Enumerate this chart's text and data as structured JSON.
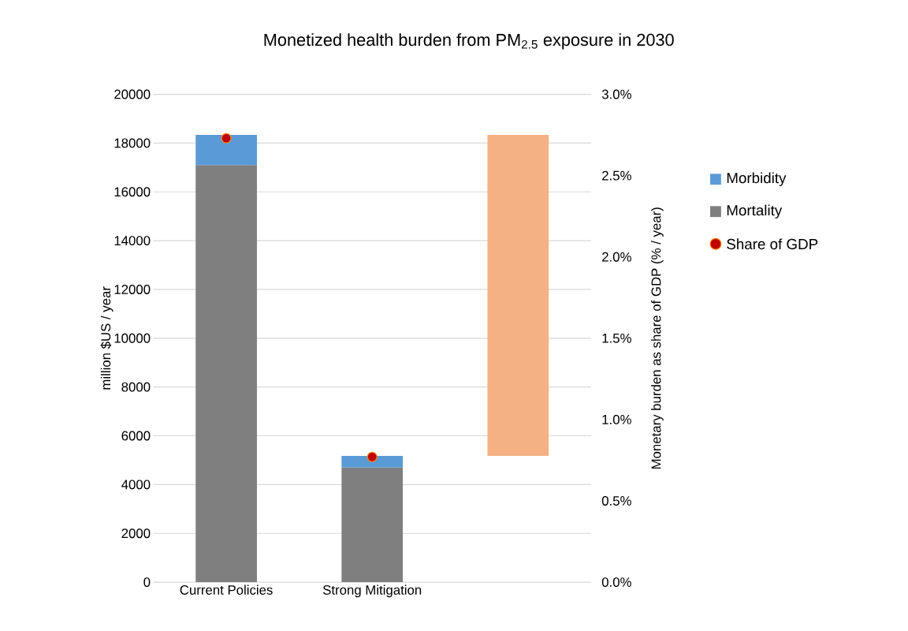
{
  "chart_data": {
    "type": "bar",
    "title": "Monetized health burden from PM$_{2.5}$ exposure in 2030",
    "ylabel": "million $US / year",
    "y2label": "Monetary burden as share of GDP (% / year)",
    "categories": [
      "Current Policies",
      "Strong Mitigation",
      null
    ],
    "stacked": true,
    "grid": "y",
    "legend": "right",
    "ylim": [
      0,
      20000
    ],
    "yticks": [
      0,
      2000,
      4000,
      6000,
      8000,
      10000,
      12000,
      14000,
      16000,
      18000,
      20000
    ],
    "y2lim": [
      0,
      3
    ],
    "y2ticks": [
      {
        "value": 0,
        "label": "0.0%"
      },
      {
        "value": 0.5,
        "label": "0.5%"
      },
      {
        "value": 1,
        "label": "1.0%"
      },
      {
        "value": 1.5,
        "label": "1.5%"
      },
      {
        "value": 2,
        "label": "2.0%"
      },
      {
        "value": 2.5,
        "label": "2.5%"
      },
      {
        "value": 3,
        "label": "3.0%"
      }
    ],
    "series": [
      {
        "name": "Mortality",
        "color": "#7f7f7f",
        "values": [
          17100,
          4700,
          null
        ]
      },
      {
        "name": "Morbidity",
        "color": "#5b9bd5",
        "values": [
          1240,
          480,
          null
        ]
      },
      {
        "color": "#f4b183",
        "values": [
          null,
          null,
          13160
        ],
        "base": [
          null,
          null,
          5180
        ]
      },
      {
        "name": "Share of GDP",
        "type": "scatter",
        "axis": "y2",
        "marker": "circle",
        "color": "#c00000",
        "values": [
          2.73,
          0.77,
          null
        ]
      }
    ]
  }
}
